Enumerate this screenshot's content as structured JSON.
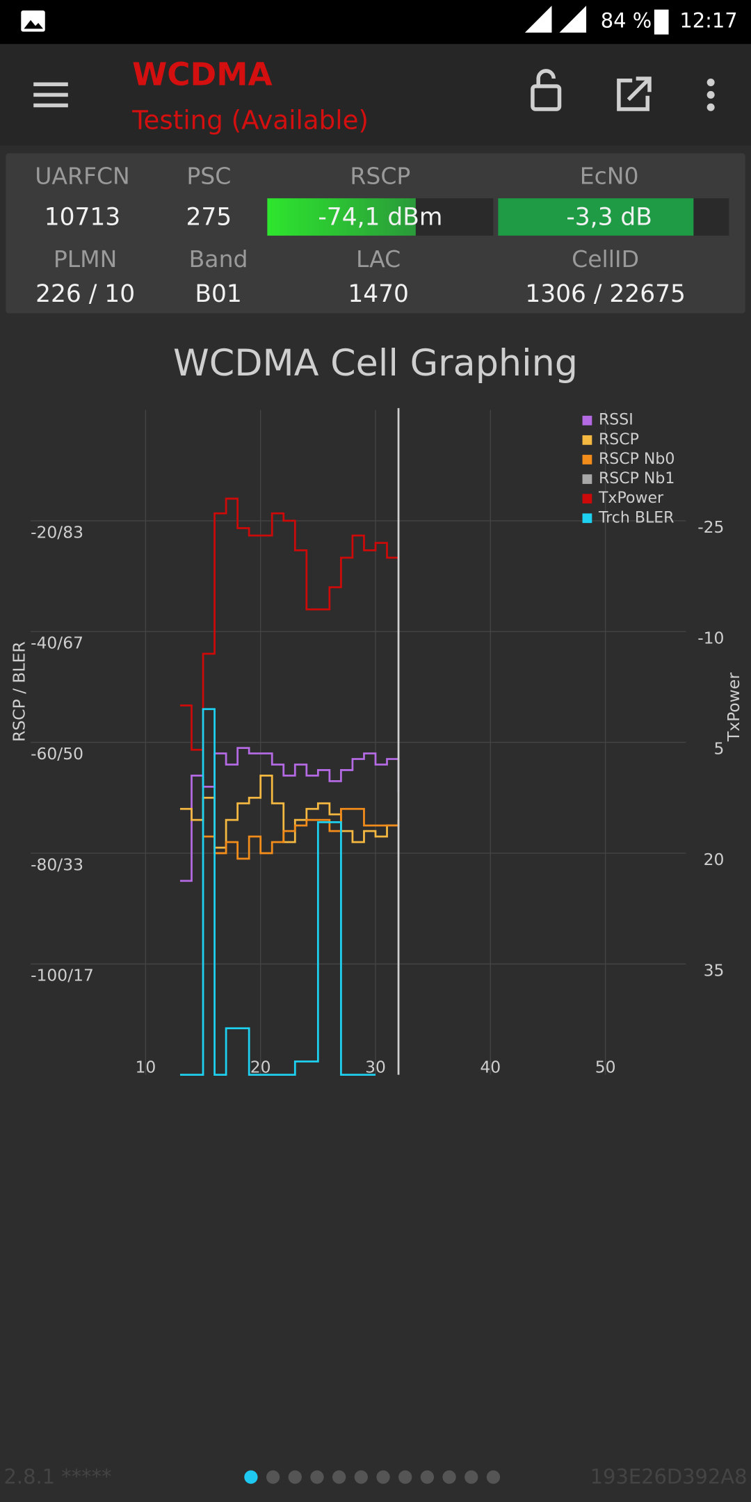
{
  "status_bar": {
    "battery": "84 %",
    "time": "12:17"
  },
  "app_bar": {
    "title": "WCDMA",
    "subtitle": "Testing (Available)"
  },
  "info_panel": {
    "cells": [
      {
        "label": "UARFCN",
        "value": "10713"
      },
      {
        "label": "PSC",
        "value": "275"
      },
      {
        "label": "RSCP",
        "value": "-74,1 dBm"
      },
      {
        "label": "EcN0",
        "value": "-3,3 dB"
      },
      {
        "label": "PLMN",
        "value": "226 / 10"
      },
      {
        "label": "Band",
        "value": "B01"
      },
      {
        "label": "LAC",
        "value": "1470"
      },
      {
        "label": "CellID",
        "value": "1306 / 22675"
      }
    ]
  },
  "chart_data": {
    "type": "line",
    "step": true,
    "title": "WCDMA Cell Graphing",
    "y_label": "RSCP / BLER",
    "y2_label": "TxPower",
    "x": [
      13,
      14,
      15,
      16,
      17,
      18,
      19,
      20,
      21,
      22,
      23,
      24,
      25,
      26,
      27,
      28,
      29,
      30,
      31,
      32
    ],
    "xlim": [
      0,
      57
    ],
    "xticks": [
      10,
      20,
      30,
      40,
      50
    ],
    "ylim": [
      -120,
      0
    ],
    "yticks": [
      {
        "value": -20,
        "label": "-20/83"
      },
      {
        "value": -40,
        "label": "-40/67"
      },
      {
        "value": -60,
        "label": "-60/50"
      },
      {
        "value": -80,
        "label": "-80/33"
      },
      {
        "value": -100,
        "label": "-100/17"
      }
    ],
    "y2lim": [
      49,
      -41
    ],
    "y2ticks": [
      -25,
      -10,
      5,
      20,
      35
    ],
    "y3lim": [
      0,
      100
    ],
    "grid": true,
    "legend": "top-right",
    "series": [
      {
        "name": "RSSI",
        "color": "#b36ae2",
        "values": [
          -85,
          -66,
          -68,
          -62,
          -64,
          -61,
          -62,
          -62,
          -64,
          -66,
          -64,
          -66,
          -65,
          -67,
          -65,
          -63,
          -62,
          -64,
          -63,
          -69
        ]
      },
      {
        "name": "RSCP",
        "color": "#f5b942",
        "values": [
          -72,
          -74,
          -70,
          -79,
          -74,
          -71,
          -70,
          -66,
          -71,
          -78,
          -74,
          -72,
          -71,
          -73,
          -76,
          -78,
          -76,
          -77,
          -75,
          -74
        ]
      },
      {
        "name": "RSCP Nb0",
        "color": "#f28c1b",
        "values": [
          null,
          null,
          -77,
          -80,
          -78,
          -81,
          -77,
          -80,
          -78,
          -76,
          -75,
          -74,
          -74,
          -76,
          -72,
          -72,
          -75,
          -75,
          -75,
          -74
        ]
      },
      {
        "name": "RSCP Nb1",
        "color": "#a8a8a8",
        "values": [
          null,
          null,
          null,
          null,
          null,
          null,
          null,
          null,
          null,
          null,
          null,
          null,
          null,
          null,
          null,
          null,
          null,
          null,
          null,
          null
        ]
      },
      {
        "name": "TxPower",
        "color": "#cc0a0a",
        "axis": "y2",
        "values": [
          -1,
          5,
          -8,
          -27,
          -29,
          -25,
          -24,
          -24,
          -27,
          -26,
          -22,
          -14,
          -14,
          -17,
          -21,
          -24,
          -22,
          -23,
          -21,
          -21
        ]
      },
      {
        "name": "Trch BLER",
        "color": "#1ed1f0",
        "axis": "y3",
        "values": [
          0,
          0,
          55,
          0,
          7,
          7,
          0,
          0,
          0,
          0,
          2,
          2,
          38,
          38,
          0,
          0,
          0,
          0,
          null,
          null
        ]
      }
    ]
  },
  "footer": {
    "version": "2.8.1 *****",
    "device_id": "193E26D392A8"
  }
}
